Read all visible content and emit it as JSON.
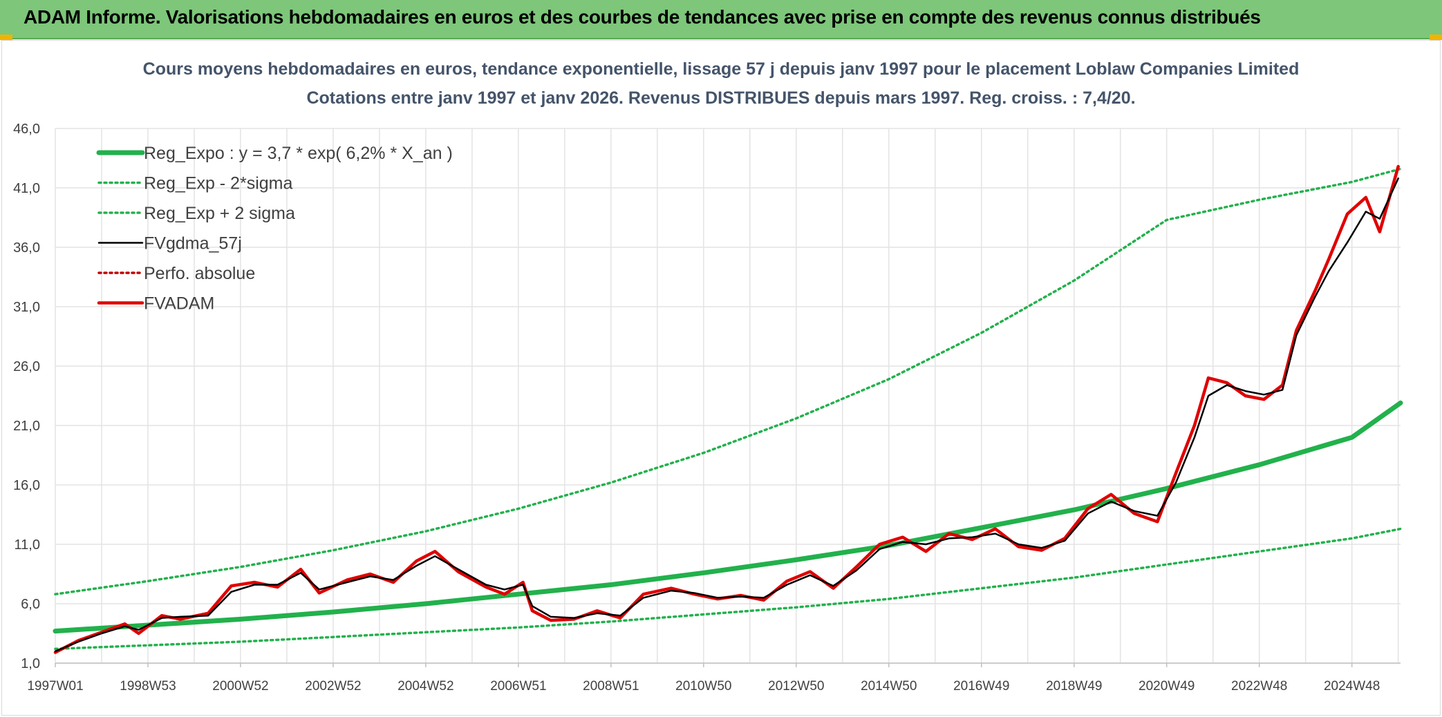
{
  "banner": {
    "title": "ADAM Informe. Valorisations hebdomadaires en euros et des courbes de tendances avec prise en compte des revenus connus distribués"
  },
  "chart_data": {
    "type": "line",
    "title_line1": "Cours moyens hebdomadaires en euros, tendance exponentielle, lissage 57 j depuis janv 1997 pour le placement Loblaw Companies Limited",
    "title_line2": "Cotations entre janv 1997 et janv 2026. Revenus DISTRIBUES depuis mars 1997. Reg. croiss. : 7,4/20.",
    "ylim": [
      1.0,
      46.0
    ],
    "yticks": [
      "1,0",
      "6,0",
      "11,0",
      "16,0",
      "21,0",
      "26,0",
      "31,0",
      "36,0",
      "41,0",
      "46,0"
    ],
    "ytick_values": [
      1,
      6,
      11,
      16,
      21,
      26,
      31,
      36,
      41,
      46
    ],
    "xticks": [
      "1997W01",
      "1998W53",
      "2000W52",
      "2002W52",
      "2004W52",
      "2006W51",
      "2008W51",
      "2010W50",
      "2012W50",
      "2014W50",
      "2016W49",
      "2018W49",
      "2020W49",
      "2022W48",
      "2024W48"
    ],
    "xtick_values": [
      1997.0,
      1999.0,
      2001.0,
      2003.0,
      2005.0,
      2007.0,
      2009.0,
      2011.0,
      2013.0,
      2015.0,
      2017.0,
      2019.0,
      2021.0,
      2023.0,
      2025.0
    ],
    "xlim": [
      1997.0,
      2026.05
    ],
    "grid": true,
    "legend_position": "top-left",
    "legend": [
      {
        "label": "Reg_Expo : y = 3,7 * exp( 6,2% *  X_an )",
        "color": "#22b14c",
        "style": "solid-thick"
      },
      {
        "label": "Reg_Exp - 2*sigma",
        "color": "#22b14c",
        "style": "dotted"
      },
      {
        "label": "Reg_Exp + 2 sigma",
        "color": "#22b14c",
        "style": "dotted"
      },
      {
        "label": "FVgdma_57j",
        "color": "#000000",
        "style": "solid-thin"
      },
      {
        "label": "Perfo. absolue",
        "color": "#c00000",
        "style": "dotted"
      },
      {
        "label": "FVADAM",
        "color": "#e00000",
        "style": "solid"
      }
    ],
    "series": [
      {
        "name": "Reg_Expo : y = 3,7 * exp( 6,2% *  X_an )",
        "x": [
          1997,
          1999,
          2001,
          2003,
          2005,
          2007,
          2009,
          2011,
          2013,
          2015,
          2017,
          2019,
          2021,
          2023,
          2025,
          2026.05
        ],
        "values": [
          3.7,
          4.2,
          4.7,
          5.3,
          6.0,
          6.8,
          7.6,
          8.6,
          9.7,
          10.9,
          12.4,
          13.9,
          15.7,
          17.7,
          20.0,
          22.9
        ]
      },
      {
        "name": "Reg_Exp - 2*sigma",
        "x": [
          1997,
          1999,
          2001,
          2003,
          2005,
          2007,
          2009,
          2011,
          2013,
          2015,
          2017,
          2019,
          2021,
          2023,
          2025,
          2026.05
        ],
        "values": [
          2.2,
          2.5,
          2.8,
          3.2,
          3.6,
          4.0,
          4.5,
          5.1,
          5.7,
          6.4,
          7.3,
          8.2,
          9.3,
          10.4,
          11.5,
          12.3
        ]
      },
      {
        "name": "Reg_Exp + 2 sigma",
        "x": [
          1997,
          1999,
          2001,
          2003,
          2005,
          2007,
          2009,
          2011,
          2013,
          2015,
          2017,
          2019,
          2021,
          2023,
          2025,
          2026.05
        ],
        "values": [
          6.8,
          7.9,
          9.1,
          10.5,
          12.1,
          14.0,
          16.2,
          18.7,
          21.6,
          24.9,
          28.8,
          33.2,
          38.3,
          40.0,
          41.5,
          42.6
        ]
      },
      {
        "name": "FVgdma_57j",
        "x": [
          1997.0,
          1997.5,
          1998.0,
          1998.5,
          1998.8,
          1999.3,
          1999.7,
          2000.3,
          2000.8,
          2001.3,
          2001.8,
          2002.3,
          2002.7,
          2003.3,
          2003.8,
          2004.3,
          2004.8,
          2005.2,
          2005.7,
          2006.3,
          2006.7,
          2007.1,
          2007.3,
          2007.7,
          2008.2,
          2008.7,
          2009.2,
          2009.7,
          2010.3,
          2010.8,
          2011.3,
          2011.8,
          2012.3,
          2012.8,
          2013.3,
          2013.8,
          2014.3,
          2014.8,
          2015.3,
          2015.8,
          2016.3,
          2016.8,
          2017.3,
          2017.8,
          2018.3,
          2018.8,
          2019.3,
          2019.8,
          2020.3,
          2020.8,
          2021.2,
          2021.6,
          2021.9,
          2022.3,
          2022.7,
          2023.1,
          2023.5,
          2023.8,
          2024.2,
          2024.5,
          2024.9,
          2025.3,
          2025.6,
          2026.0
        ],
        "values": [
          2.0,
          2.8,
          3.5,
          4.1,
          3.8,
          4.8,
          4.9,
          5.0,
          7.0,
          7.6,
          7.6,
          8.6,
          7.2,
          7.8,
          8.3,
          8.0,
          9.2,
          10.0,
          8.9,
          7.6,
          7.2,
          7.6,
          5.8,
          4.9,
          4.8,
          5.2,
          5.0,
          6.5,
          7.1,
          6.9,
          6.5,
          6.6,
          6.5,
          7.6,
          8.4,
          7.5,
          8.8,
          10.6,
          11.2,
          11.0,
          11.5,
          11.6,
          11.9,
          11.0,
          10.7,
          11.3,
          13.6,
          14.6,
          13.8,
          13.4,
          16.2,
          20.0,
          23.5,
          24.4,
          23.9,
          23.6,
          24.0,
          28.6,
          31.8,
          34.0,
          36.4,
          39.0,
          38.4,
          41.8
        ]
      },
      {
        "name": "FVADAM",
        "x": [
          1997.0,
          1997.5,
          1998.0,
          1998.5,
          1998.8,
          1999.3,
          1999.7,
          2000.3,
          2000.8,
          2001.3,
          2001.8,
          2002.3,
          2002.7,
          2003.3,
          2003.8,
          2004.3,
          2004.8,
          2005.2,
          2005.7,
          2006.3,
          2006.7,
          2007.1,
          2007.3,
          2007.7,
          2008.2,
          2008.7,
          2009.2,
          2009.7,
          2010.3,
          2010.8,
          2011.3,
          2011.8,
          2012.3,
          2012.8,
          2013.3,
          2013.8,
          2014.3,
          2014.8,
          2015.3,
          2015.8,
          2016.3,
          2016.8,
          2017.3,
          2017.8,
          2018.3,
          2018.8,
          2019.3,
          2019.8,
          2020.3,
          2020.8,
          2021.2,
          2021.6,
          2021.9,
          2022.3,
          2022.7,
          2023.1,
          2023.5,
          2023.8,
          2024.2,
          2024.5,
          2024.9,
          2025.3,
          2025.6,
          2026.0
        ],
        "values": [
          1.9,
          2.9,
          3.6,
          4.3,
          3.5,
          5.0,
          4.7,
          5.2,
          7.5,
          7.8,
          7.4,
          8.9,
          6.9,
          8.0,
          8.5,
          7.8,
          9.6,
          10.4,
          8.7,
          7.4,
          6.8,
          7.8,
          5.4,
          4.6,
          4.7,
          5.4,
          4.8,
          6.8,
          7.3,
          6.8,
          6.4,
          6.7,
          6.3,
          7.9,
          8.7,
          7.3,
          9.1,
          11.0,
          11.6,
          10.4,
          11.9,
          11.4,
          12.3,
          10.8,
          10.5,
          11.5,
          14.0,
          15.2,
          13.6,
          12.9,
          17.0,
          21.0,
          25.0,
          24.6,
          23.5,
          23.2,
          24.4,
          29.0,
          32.3,
          35.0,
          38.8,
          40.2,
          37.3,
          42.8
        ]
      }
    ]
  }
}
